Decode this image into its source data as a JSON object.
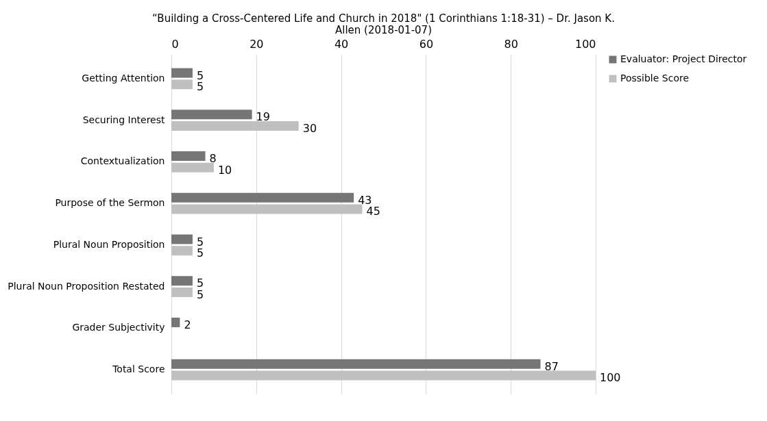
{
  "chart_data": {
    "type": "bar",
    "orientation": "horizontal",
    "title": "“Building a Cross-Centered Life and Church in 2018\" (1 Corinthians 1:18-31) – Dr. Jason K. Allen (2018-01-07)",
    "categories": [
      "Getting Attention",
      "Securing Interest",
      "Contextualization",
      "Purpose of the Sermon",
      "Plural Noun Proposition",
      "Plural Noun Proposition Restated",
      "Grader Subjectivity",
      "Total Score"
    ],
    "series": [
      {
        "name": "Evaluator: Project Director",
        "color": "#767676",
        "values": [
          5,
          19,
          8,
          43,
          5,
          5,
          2,
          87
        ]
      },
      {
        "name": "Possible Score",
        "color": "#c0c0c0",
        "values": [
          5,
          30,
          10,
          45,
          5,
          5,
          null,
          100
        ]
      }
    ],
    "xlim": [
      0,
      100
    ],
    "xticks": [
      0,
      20,
      40,
      60,
      80,
      100
    ],
    "grid": "x",
    "legend": "right",
    "data_labels": true
  }
}
